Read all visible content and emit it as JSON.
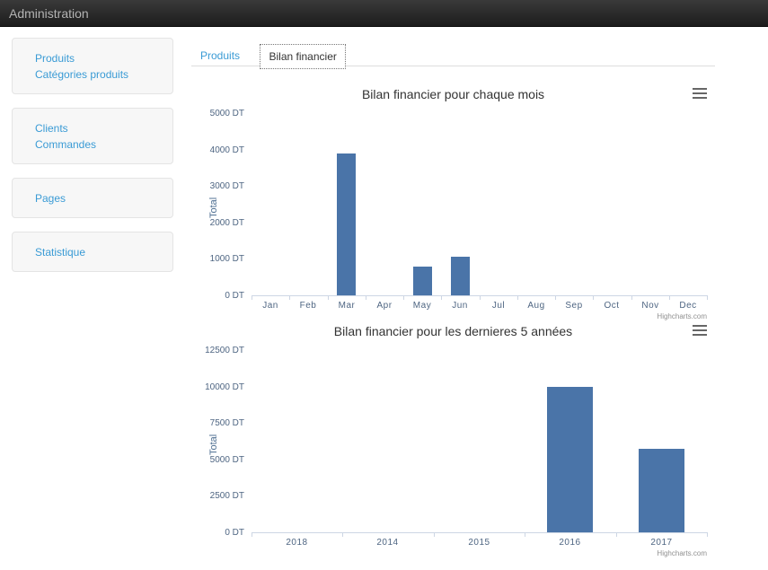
{
  "header": {
    "title": "Administration"
  },
  "sidebar": {
    "groups": [
      {
        "items": [
          {
            "label": "Produits"
          },
          {
            "label": "Catégories produits"
          }
        ]
      },
      {
        "items": [
          {
            "label": "Clients"
          },
          {
            "label": "Commandes"
          }
        ]
      },
      {
        "items": [
          {
            "label": "Pages"
          }
        ]
      },
      {
        "items": [
          {
            "label": "Statistique"
          }
        ]
      }
    ]
  },
  "tabs": [
    {
      "label": "Produits",
      "active": false
    },
    {
      "label": "Bilan financier",
      "active": true
    }
  ],
  "colors": {
    "link": "#3a9bd5",
    "bar": "#4a74a8",
    "axis_label": "#4e6582"
  },
  "chart_data": [
    {
      "type": "bar",
      "title": "Bilan financier pour chaque mois",
      "categories": [
        "Jan",
        "Feb",
        "Mar",
        "Apr",
        "May",
        "Jun",
        "Jul",
        "Aug",
        "Sep",
        "Oct",
        "Nov",
        "Dec"
      ],
      "values": [
        0,
        0,
        3900,
        0,
        800,
        1050,
        0,
        0,
        0,
        0,
        0,
        0
      ],
      "xlabel": "",
      "ylabel": "Total",
      "unit": "DT",
      "ylim": [
        0,
        5000
      ],
      "tick_interval": 1000,
      "grid": false,
      "legend": "none",
      "bar_color": "#4a74a8",
      "credit": "Highcharts.com"
    },
    {
      "type": "bar",
      "title": "Bilan financier pour les dernieres 5 années",
      "categories": [
        "2018",
        "2014",
        "2015",
        "2016",
        "2017"
      ],
      "values": [
        0,
        0,
        0,
        10000,
        5700
      ],
      "xlabel": "",
      "ylabel": "Total",
      "unit": "DT",
      "ylim": [
        0,
        12500
      ],
      "tick_interval": 2500,
      "grid": false,
      "legend": "none",
      "bar_color": "#4a74a8",
      "credit": "Highcharts.com"
    }
  ]
}
